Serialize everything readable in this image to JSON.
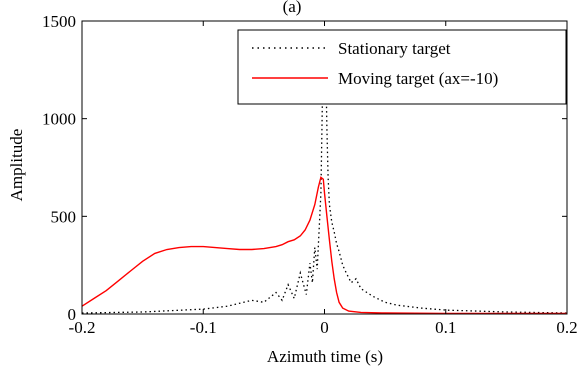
{
  "top_text": "(a)",
  "chart_data": {
    "type": "line",
    "xlabel": "Azimuth time (s)",
    "ylabel": "Amplitude",
    "xlim": [
      -0.2,
      0.2
    ],
    "ylim": [
      0,
      1500
    ],
    "xticks": [
      -0.2,
      -0.1,
      0,
      0.1,
      0.2
    ],
    "xtick_labels": [
      "-0.2",
      "-0.1",
      "0",
      "0.1",
      "0.2"
    ],
    "yticks": [
      0,
      500,
      1000,
      1500
    ],
    "ytick_labels": [
      "0",
      "500",
      "1000",
      "1500"
    ],
    "grid": false,
    "legend_position": "top-right",
    "series": [
      {
        "name": "Stationary target",
        "color": "#000000",
        "style": "dotted",
        "x": [
          -0.2,
          -0.15,
          -0.1,
          -0.08,
          -0.06,
          -0.05,
          -0.04,
          -0.035,
          -0.03,
          -0.025,
          -0.02,
          -0.015,
          -0.012,
          -0.01,
          -0.008,
          -0.006,
          -0.004,
          -0.003,
          -0.002,
          -0.001,
          0,
          0.001,
          0.002,
          0.003,
          0.004,
          0.006,
          0.008,
          0.01,
          0.012,
          0.015,
          0.018,
          0.022,
          0.026,
          0.03,
          0.035,
          0.04,
          0.05,
          0.06,
          0.08,
          0.1,
          0.15,
          0.2
        ],
        "y": [
          5,
          10,
          25,
          40,
          70,
          60,
          110,
          70,
          150,
          80,
          210,
          100,
          260,
          160,
          340,
          230,
          480,
          620,
          1000,
          1380,
          1450,
          1300,
          950,
          700,
          560,
          470,
          420,
          360,
          320,
          250,
          210,
          160,
          180,
          130,
          110,
          90,
          60,
          45,
          30,
          20,
          10,
          5
        ]
      },
      {
        "name": "Moving target (ax=-10)",
        "color": "#ff0000",
        "style": "solid",
        "x": [
          -0.2,
          -0.19,
          -0.18,
          -0.17,
          -0.16,
          -0.15,
          -0.14,
          -0.13,
          -0.12,
          -0.11,
          -0.1,
          -0.09,
          -0.08,
          -0.07,
          -0.06,
          -0.05,
          -0.04,
          -0.035,
          -0.03,
          -0.025,
          -0.02,
          -0.016,
          -0.012,
          -0.008,
          -0.005,
          -0.003,
          -0.001,
          0,
          0.002,
          0.004,
          0.006,
          0.008,
          0.01,
          0.012,
          0.015,
          0.02,
          0.03,
          0.05,
          0.1,
          0.15,
          0.2
        ],
        "y": [
          40,
          80,
          120,
          170,
          220,
          270,
          310,
          330,
          340,
          345,
          345,
          340,
          335,
          330,
          330,
          335,
          345,
          355,
          370,
          380,
          400,
          430,
          480,
          560,
          650,
          700,
          690,
          620,
          500,
          380,
          270,
          180,
          110,
          60,
          30,
          15,
          8,
          5,
          3,
          3,
          3
        ]
      }
    ]
  }
}
